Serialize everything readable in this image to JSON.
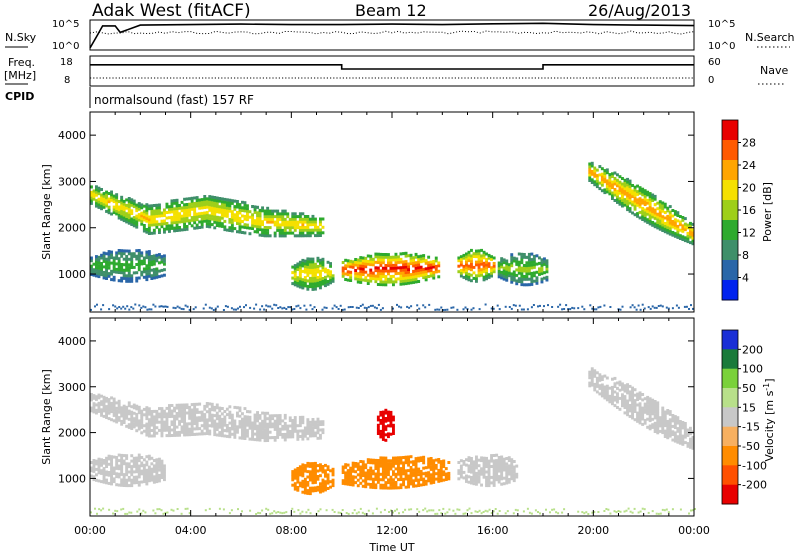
{
  "header": {
    "station": "Adak West (fitACF)",
    "beam": "Beam 12",
    "date": "26/Aug/2013"
  },
  "sky_panel": {
    "left_label": "N.Sky",
    "right_label": "N.Search",
    "ticks_left": [
      "10^5",
      "10^0"
    ],
    "ticks_right": [
      "10^5",
      "10^0"
    ]
  },
  "freq_panel": {
    "left_label_1": "Freq.",
    "left_label_2": "[MHz]",
    "right_label": "Nave",
    "ticks_left": [
      "18",
      "8"
    ],
    "ticks_right": [
      "60",
      "0"
    ]
  },
  "cpid": {
    "label": "CPID",
    "value": "normalsound (fast) 157 RF"
  },
  "colors": {
    "power_scale": [
      "#0022ee",
      "#2a66a8",
      "#3f8f6a",
      "#2eaa2e",
      "#9ecf1a",
      "#f5e000",
      "#ffa500",
      "#ff5a00",
      "#e80000"
    ],
    "velocity_scale": [
      "#1a2fd6",
      "#1a7a3a",
      "#7ad13a",
      "#b8e08a",
      "#c8c8c8",
      "#f7b060",
      "#ff8c00",
      "#ff5000",
      "#e80000"
    ]
  },
  "chart_data": [
    {
      "type": "line",
      "title": "Adak West (fitACF)  Beam 12  26/Aug/2013",
      "panel": "N.Sky / N.Search",
      "x_unit": "hours UT",
      "ylim_left": [
        "10^0",
        "10^5"
      ],
      "note_series": [
        {
          "name": "N.Sky",
          "x": [
            0,
            0.3,
            0.5,
            1.0,
            1.2,
            2,
            4,
            6,
            8,
            10,
            12,
            14,
            16,
            18,
            20,
            22,
            24
          ],
          "y_level": [
            0.0,
            0.5,
            0.85,
            0.85,
            0.6,
            0.88,
            0.9,
            0.92,
            0.9,
            0.9,
            0.92,
            0.9,
            0.93,
            0.95,
            0.9,
            0.88,
            0.86
          ]
        }
      ]
    },
    {
      "type": "line",
      "panel": "Freq. / Nave",
      "x_unit": "hours UT",
      "ylim_left": [
        8,
        18
      ],
      "ylim_right": [
        0,
        60
      ],
      "series": [
        {
          "name": "Freq.",
          "x": [
            0,
            10,
            10,
            18,
            18,
            24
          ],
          "y": [
            15.2,
            15.2,
            13.7,
            13.7,
            15.2,
            15.2
          ]
        },
        {
          "name": "Nave",
          "x": [
            0,
            24
          ],
          "y": [
            15,
            15
          ]
        }
      ]
    },
    {
      "type": "heatmap",
      "panel": "Power",
      "ylabel": "Slant Range [km]",
      "xlabel": "Time UT",
      "xlim": [
        0,
        24
      ],
      "ylim": [
        180,
        4500
      ],
      "x_ticks": [
        "00:00",
        "04:00",
        "08:00",
        "12:00",
        "16:00",
        "20:00",
        "00:00"
      ],
      "y_ticks": [
        "1000",
        "2000",
        "3000",
        "4000"
      ],
      "colorbar_label": "Power [dB]",
      "colorbar_ticks": [
        "4",
        "8",
        "12",
        "16",
        "20",
        "24",
        "28"
      ],
      "colorbar_range": [
        0,
        30
      ],
      "features": [
        {
          "t0": 0.0,
          "t1": 9.2,
          "r_center": [
            2700,
            2150,
            2350,
            2100,
            2000
          ],
          "intensity": 14
        },
        {
          "t0": 0.0,
          "t1": 3.0,
          "r_center": [
            1150,
            1150
          ],
          "intensity": 8
        },
        {
          "t0": 8.0,
          "t1": 9.6,
          "r_center": [
            950,
            1000
          ],
          "intensity": 14
        },
        {
          "t0": 10.0,
          "t1": 13.8,
          "r_center": [
            1050,
            1100
          ],
          "intensity": 20
        },
        {
          "t0": 14.6,
          "t1": 16.0,
          "r_center": [
            1150,
            1150
          ],
          "intensity": 18
        },
        {
          "t0": 16.2,
          "t1": 18.2,
          "r_center": [
            1100,
            1050
          ],
          "intensity": 10
        },
        {
          "t0": 19.8,
          "t1": 24.0,
          "r_center": [
            3200,
            2500,
            1800
          ],
          "intensity": 16
        }
      ]
    },
    {
      "type": "heatmap",
      "panel": "Velocity",
      "ylabel": "Slant Range [km]",
      "xlabel": "Time UT",
      "xlim": [
        0,
        24
      ],
      "ylim": [
        180,
        4500
      ],
      "x_ticks": [
        "00:00",
        "04:00",
        "08:00",
        "12:00",
        "16:00",
        "20:00",
        "00:00"
      ],
      "y_ticks": [
        "1000",
        "2000",
        "3000",
        "4000"
      ],
      "colorbar_label": "Velocity [m s^-1]",
      "colorbar_ticks": [
        "200",
        "100",
        "50",
        "15",
        "-15",
        "-50",
        "-100",
        "-200"
      ],
      "colorbar_range": [
        -250,
        250
      ],
      "features": [
        {
          "t0": 0.0,
          "t1": 9.2,
          "r_center": [
            2650,
            2200,
            2300,
            2100,
            2050
          ],
          "velocity": 0
        },
        {
          "t0": 0.0,
          "t1": 3.0,
          "r_center": [
            1150,
            1150
          ],
          "velocity": 0
        },
        {
          "t0": 8.0,
          "t1": 9.6,
          "r_center": [
            950,
            1000
          ],
          "velocity": -60
        },
        {
          "t0": 10.0,
          "t1": 14.2,
          "r_center": [
            1050,
            1150
          ],
          "velocity": -80
        },
        {
          "t0": 11.4,
          "t1": 12.0,
          "r_center": [
            2150,
            2150
          ],
          "velocity": -200
        },
        {
          "t0": 14.6,
          "t1": 17.0,
          "r_center": [
            1150,
            1150
          ],
          "velocity": 0
        },
        {
          "t0": 19.8,
          "t1": 24.0,
          "r_center": [
            3200,
            2500,
            1800
          ],
          "velocity": 0
        }
      ]
    }
  ],
  "axis_titles": {
    "power_ylabel": "Slant Range [km]",
    "velocity_ylabel": "Slant Range [km]",
    "xlabel": "Time UT",
    "power_cbar": "Power [dB]",
    "velocity_cbar": "Velocity [m s",
    "velocity_cbar_exp": "-1",
    "velocity_cbar_close": "]"
  }
}
